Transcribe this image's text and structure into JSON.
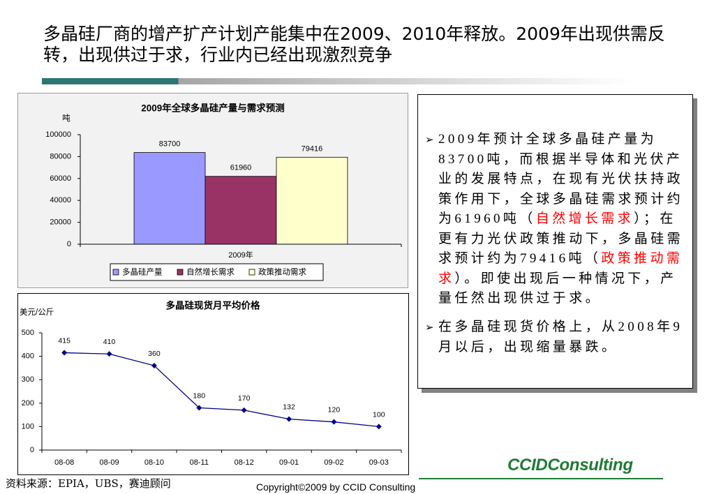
{
  "slide": {
    "title_lines": [
      "多晶硅厂商的增产扩产计划产能集中在2009、2010年释放。2009年出现供需反",
      "转，出现供过于求，行业内已经出现激烈竞争"
    ],
    "accent_color": "#2d7673"
  },
  "info_box": {
    "bullet_marker": "➢",
    "highlight_color": "#ff0000",
    "bullets": [
      {
        "lines": [
          [
            {
              "text": "2009年预计全球多晶硅产量为"
            }
          ],
          [
            {
              "text": "83700吨，而根据半导体和光伏产"
            }
          ],
          [
            {
              "text": "业的发展特点，在现有光伏扶持政"
            }
          ],
          [
            {
              "text": "策作用下，全球多晶硅需求预计约"
            }
          ],
          [
            {
              "text": "为61960吨（"
            },
            {
              "text": "自然增长需求",
              "highlight": true
            },
            {
              "text": "）；在"
            }
          ],
          [
            {
              "text": "更有力光伏政策推动下，多晶硅需"
            }
          ],
          [
            {
              "text": "求预计约为79416吨（"
            },
            {
              "text": "政策推动需",
              "highlight": true
            }
          ],
          [
            {
              "text": "求",
              "highlight": true
            },
            {
              "text": "）。即使出现后一种情况下，产"
            }
          ],
          [
            {
              "text": "量任然出现供过于求。"
            }
          ]
        ]
      },
      {
        "lines": [
          [
            {
              "text": "在多晶硅现货价格上，从2008年9"
            }
          ],
          [
            {
              "text": "月以后，出现缩量暴跌。"
            }
          ]
        ]
      }
    ]
  },
  "footer": {
    "source": "资料来源：EPIA，UBS，赛迪顾问",
    "copyright": "Copyright©2009 by CCID Consulting",
    "logo_text": "CCIDConsulting",
    "logo_color": "#1e7b34"
  },
  "chart_data": [
    {
      "type": "bar",
      "title": "2009年全球多晶硅产量与需求预测",
      "ylabel": "吨",
      "categories": [
        "2009年"
      ],
      "series": [
        {
          "name": "多晶硅产量",
          "values": [
            83700
          ],
          "color": "#9999ff"
        },
        {
          "name": "自然增长需求",
          "values": [
            61960
          ],
          "color": "#993366"
        },
        {
          "name": "政策推动需求",
          "values": [
            79416
          ],
          "color": "#ffffcc"
        }
      ],
      "data_labels": true,
      "ylim": [
        0,
        100000
      ],
      "yticks": [
        0,
        20000,
        40000,
        60000,
        80000,
        100000
      ],
      "grid": false,
      "legend": "bottom"
    },
    {
      "type": "line",
      "title": "多晶硅现货月平均价格",
      "ylabel": "美元/公斤",
      "categories": [
        "08-08",
        "08-09",
        "08-10",
        "08-11",
        "08-12",
        "09-01",
        "09-02",
        "09-03"
      ],
      "series": [
        {
          "values": [
            415,
            410,
            360,
            180,
            170,
            132,
            120,
            100
          ],
          "color": "#000080",
          "marker": "diamond"
        }
      ],
      "data_labels": true,
      "ylim": [
        0,
        500
      ],
      "yticks": [
        0,
        100,
        200,
        300,
        400,
        500
      ],
      "grid": false,
      "legend": "none"
    }
  ]
}
